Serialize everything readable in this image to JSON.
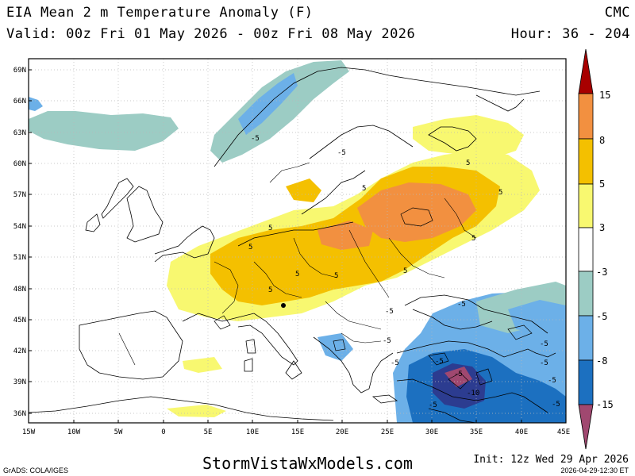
{
  "header": {
    "title": "EIA Mean 2 m Temperature Anomaly (F)",
    "valid": "Valid: 00z Fri 01 May 2026 - 00z Fri 08 May 2026",
    "model": "CMC",
    "hours": "Hour: 36 - 204"
  },
  "map": {
    "lat_labels": [
      "69N",
      "66N",
      "63N",
      "60N",
      "57N",
      "54N",
      "51N",
      "48N",
      "45N",
      "42N",
      "39N",
      "36N"
    ],
    "lon_labels": [
      "15W",
      "10W",
      "5W",
      "0",
      "5E",
      "10E",
      "15E",
      "20E",
      "25E",
      "30E",
      "35E",
      "40E",
      "45E"
    ],
    "contour_labels": [
      "-5",
      "-5",
      "-5",
      "-5",
      "5",
      "5",
      "5",
      "5",
      "5",
      "5",
      "5",
      "5",
      "5",
      "5",
      "-5",
      "-5",
      "-5",
      "-5",
      "-5",
      "-5",
      "-10",
      "-5",
      "-5",
      "-5"
    ]
  },
  "colorbar": {
    "labels": [
      "15",
      "8",
      "5",
      "3",
      "-3",
      "-5",
      "-8",
      "-15"
    ],
    "colors": [
      "#a80000",
      "#f29040",
      "#f4c000",
      "#f8f870",
      "#ffffff",
      "#9cccc4",
      "#6cb0e8",
      "#1c70c0",
      "#2c3c90",
      "#a04870"
    ]
  },
  "footer": {
    "site": "StormVistaWxModels.com",
    "init": "Init: 12z Wed 29 Apr 2026",
    "grads": "GrADS: COLA/IGES",
    "stamp": "2026-04-29-12:30 ET"
  }
}
